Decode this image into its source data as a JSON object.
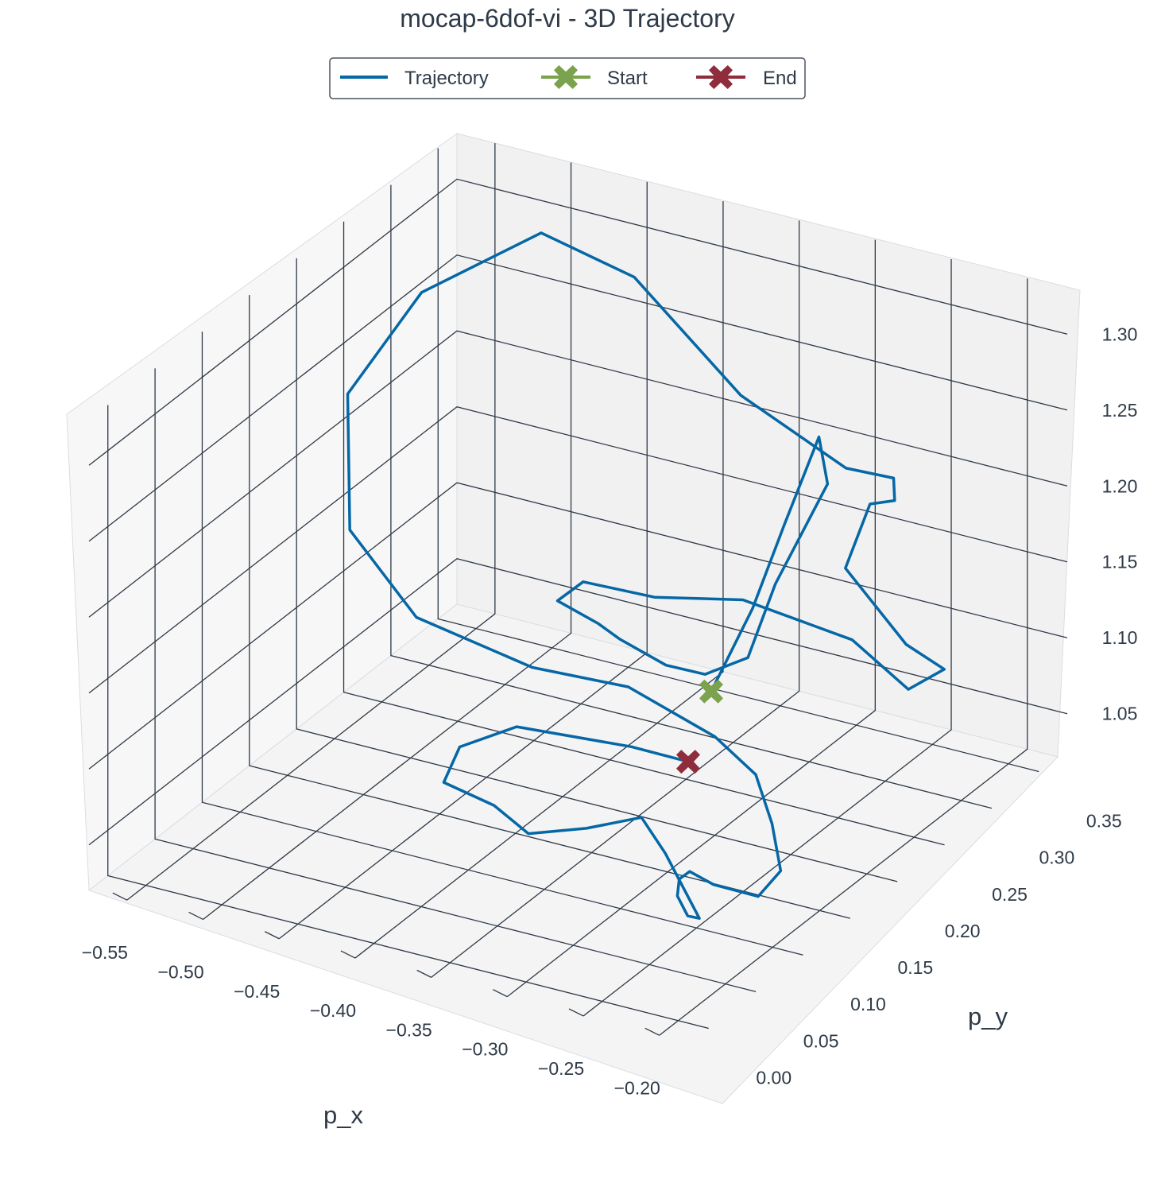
{
  "chart_data": {
    "type": "line",
    "title": "mocap-6dof-vi - 3D Trajectory",
    "xlabel": "p_x",
    "ylabel": "p_y",
    "zlabel": "",
    "x_ticks": [
      "−0.55",
      "−0.50",
      "−0.45",
      "−0.40",
      "−0.35",
      "−0.30",
      "−0.25",
      "−0.20"
    ],
    "y_ticks": [
      "0.00",
      "0.05",
      "0.10",
      "0.15",
      "0.20",
      "0.25",
      "0.30",
      "0.35"
    ],
    "z_ticks": [
      "1.05",
      "1.10",
      "1.15",
      "1.20",
      "1.25",
      "1.30"
    ],
    "xlim": [
      -0.575,
      -0.18
    ],
    "ylim": [
      -0.02,
      0.37
    ],
    "zlim": [
      1.02,
      1.33
    ],
    "grid": true,
    "legend_position": "top-center",
    "series": [
      {
        "name": "Trajectory",
        "color": "#0567a6"
      },
      {
        "name": "Start",
        "color": "#7ba24c",
        "marker": "X",
        "point": [
          -0.316,
          0.222,
          1.1
        ]
      },
      {
        "name": "End",
        "color": "#8f2d3c",
        "marker": "X",
        "point": [
          -0.302,
          0.175,
          1.08
        ]
      }
    ],
    "trajectory": [
      [
        -0.316,
        0.222,
        1.1
      ],
      [
        -0.3,
        0.24,
        1.15
      ],
      [
        -0.285,
        0.25,
        1.205
      ],
      [
        -0.27,
        0.262,
        1.26
      ],
      [
        -0.26,
        0.255,
        1.235
      ],
      [
        -0.285,
        0.24,
        1.17
      ],
      [
        -0.3,
        0.235,
        1.12
      ],
      [
        -0.33,
        0.238,
        1.1
      ],
      [
        -0.36,
        0.245,
        1.095
      ],
      [
        -0.395,
        0.252,
        1.1
      ],
      [
        -0.42,
        0.27,
        1.095
      ],
      [
        -0.45,
        0.275,
        1.1
      ],
      [
        -0.43,
        0.27,
        1.12
      ],
      [
        -0.38,
        0.265,
        1.125
      ],
      [
        -0.32,
        0.262,
        1.14
      ],
      [
        -0.25,
        0.265,
        1.13
      ],
      [
        -0.21,
        0.26,
        1.11
      ],
      [
        -0.205,
        0.29,
        1.11
      ],
      [
        -0.23,
        0.29,
        1.12
      ],
      [
        -0.27,
        0.29,
        1.16
      ],
      [
        -0.26,
        0.3,
        1.2
      ],
      [
        -0.25,
        0.31,
        1.2
      ],
      [
        -0.26,
        0.325,
        1.205
      ],
      [
        -0.285,
        0.315,
        1.21
      ],
      [
        -0.345,
        0.3,
        1.25
      ],
      [
        -0.415,
        0.3,
        1.31
      ],
      [
        -0.47,
        0.29,
        1.33
      ],
      [
        -0.53,
        0.26,
        1.29
      ],
      [
        -0.56,
        0.23,
        1.23
      ],
      [
        -0.54,
        0.2,
        1.16
      ],
      [
        -0.49,
        0.19,
        1.12
      ],
      [
        -0.42,
        0.2,
        1.1
      ],
      [
        -0.36,
        0.205,
        1.1
      ],
      [
        -0.3,
        0.2,
        1.085
      ],
      [
        -0.27,
        0.195,
        1.07
      ],
      [
        -0.25,
        0.18,
        1.05
      ],
      [
        -0.235,
        0.165,
        1.03
      ],
      [
        -0.225,
        0.125,
        1.035
      ],
      [
        -0.245,
        0.11,
        1.045
      ],
      [
        -0.27,
        0.125,
        1.04
      ],
      [
        -0.28,
        0.13,
        1.03
      ],
      [
        -0.275,
        0.12,
        1.025
      ],
      [
        -0.262,
        0.11,
        1.02
      ],
      [
        -0.245,
        0.095,
        1.03
      ],
      [
        -0.255,
        0.075,
        1.08
      ],
      [
        -0.28,
        0.09,
        1.09
      ],
      [
        -0.31,
        0.08,
        1.08
      ],
      [
        -0.345,
        0.075,
        1.07
      ],
      [
        -0.38,
        0.095,
        1.07
      ],
      [
        -0.41,
        0.09,
        1.08
      ],
      [
        -0.415,
        0.115,
        1.09
      ],
      [
        -0.39,
        0.135,
        1.1
      ],
      [
        -0.33,
        0.16,
        1.09
      ],
      [
        -0.302,
        0.175,
        1.08
      ]
    ]
  }
}
